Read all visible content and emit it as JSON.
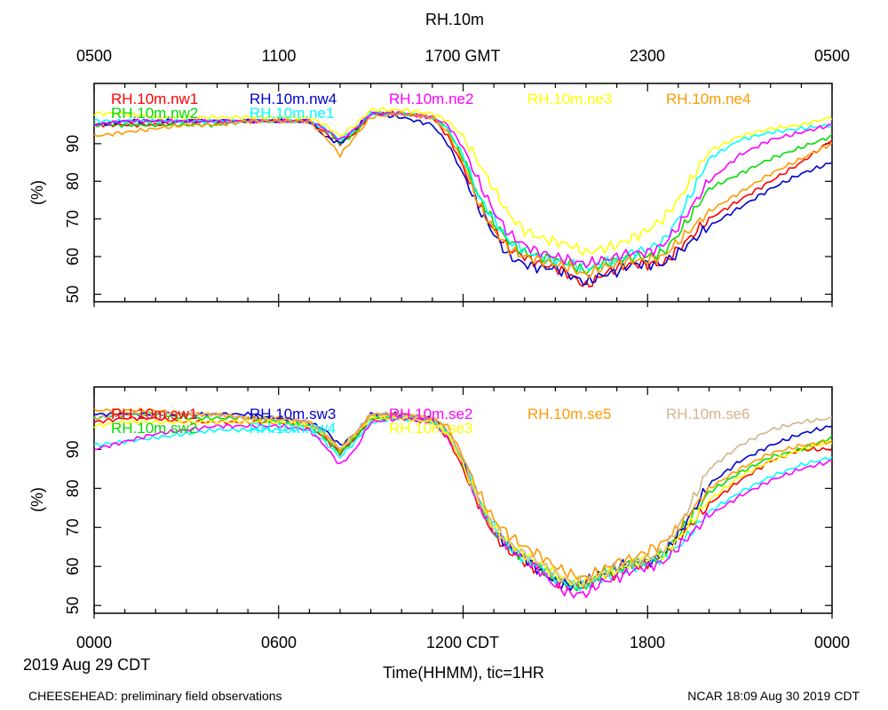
{
  "page_title": "RH.10m",
  "footer_left": "CHEESEHEAD: preliminary field observations",
  "footer_right": "NCAR 18:09 Aug 30 2019 CDT",
  "date_label": "2019 Aug 29 CDT",
  "xlabel": "Time(HHMM), tic=1HR",
  "top_axis_ticks": [
    "0500",
    "1100",
    "1700 GMT",
    "2300",
    "0500"
  ],
  "bottom_axis_ticks": [
    "0000",
    "0600",
    "1200 CDT",
    "1800",
    "0000"
  ],
  "chart_data": [
    {
      "type": "line",
      "title": "RH.10m",
      "ylabel": "(%)",
      "x_unit": "hours CDT",
      "xlim": [
        0,
        24
      ],
      "ylim": [
        48,
        106
      ],
      "yticks": [
        50,
        60,
        70,
        80,
        90
      ],
      "ytick_labels": [
        "50",
        "60",
        "70",
        "80",
        "90"
      ],
      "x": [
        0,
        1,
        2,
        3,
        4,
        5,
        6,
        7,
        7.5,
        8,
        8.5,
        9,
        10,
        11,
        11.5,
        12,
        12.5,
        13,
        13.5,
        14,
        14.5,
        15,
        15.5,
        16,
        16.5,
        17,
        17.5,
        18,
        18.5,
        19,
        20,
        21,
        22,
        23,
        24
      ],
      "series": [
        {
          "name": "RH.10m.nw1",
          "color": "#ff0000",
          "values": [
            95,
            95,
            95,
            96,
            96,
            96,
            96,
            96,
            93,
            90,
            93,
            98,
            98,
            97,
            92,
            84,
            74,
            67,
            62,
            60,
            58,
            57,
            55,
            52,
            55,
            57,
            58,
            58,
            58,
            62,
            70,
            75,
            80,
            85,
            91
          ]
        },
        {
          "name": "RH.10m.nw2",
          "color": "#00dd00",
          "values": [
            95,
            95,
            95,
            95,
            95,
            96,
            96,
            96,
            94,
            90,
            93,
            98,
            98,
            97,
            94,
            86,
            76,
            69,
            64,
            61,
            60,
            59,
            58,
            56,
            58,
            59,
            60,
            60,
            61,
            66,
            78,
            82,
            86,
            89,
            92
          ]
        },
        {
          "name": "RH.10m.nw4",
          "color": "#0000cc",
          "values": [
            95,
            96,
            96,
            96,
            96,
            96,
            96,
            96,
            92,
            90,
            94,
            98,
            97,
            95,
            90,
            82,
            73,
            66,
            60,
            58,
            57,
            57,
            55,
            53,
            55,
            56,
            58,
            58,
            58,
            61,
            68,
            73,
            78,
            82,
            85
          ]
        },
        {
          "name": "RH.10m.ne1",
          "color": "#00ffff",
          "values": [
            96,
            96,
            96,
            96,
            96,
            96,
            96,
            96,
            94,
            91,
            94,
            98,
            98,
            97,
            94,
            87,
            76,
            70,
            64,
            62,
            60,
            59,
            58,
            57,
            58,
            59,
            61,
            62,
            64,
            70,
            86,
            91,
            93,
            94,
            95
          ]
        },
        {
          "name": "RH.10m.ne2",
          "color": "#ff00ff",
          "values": [
            95,
            96,
            96,
            96,
            96,
            96,
            96,
            96,
            94,
            91,
            94,
            98,
            98,
            97,
            95,
            89,
            80,
            72,
            66,
            63,
            61,
            60,
            59,
            58,
            59,
            60,
            61,
            61,
            63,
            68,
            80,
            87,
            91,
            93,
            95
          ]
        },
        {
          "name": "RH.10m.ne3",
          "color": "#ffff00",
          "values": [
            98,
            98,
            97,
            97,
            97,
            97,
            97,
            97,
            95,
            92,
            95,
            99,
            99,
            98,
            96,
            92,
            85,
            78,
            71,
            67,
            65,
            64,
            63,
            61,
            62,
            63,
            65,
            67,
            70,
            75,
            88,
            92,
            94,
            95,
            97
          ]
        },
        {
          "name": "RH.10m.ne4",
          "color": "#ff9900",
          "values": [
            92,
            93,
            94,
            95,
            95,
            96,
            96,
            96,
            92,
            87,
            92,
            97,
            98,
            97,
            93,
            85,
            74,
            67,
            62,
            60,
            59,
            58,
            57,
            55,
            57,
            58,
            59,
            59,
            60,
            64,
            72,
            77,
            82,
            86,
            90
          ]
        }
      ]
    },
    {
      "type": "line",
      "title": "RH.10m",
      "ylabel": "(%)",
      "x_unit": "hours CDT",
      "xlim": [
        0,
        24
      ],
      "ylim": [
        48,
        106
      ],
      "yticks": [
        50,
        60,
        70,
        80,
        90
      ],
      "ytick_labels": [
        "50",
        "60",
        "70",
        "80",
        "90"
      ],
      "x": [
        0,
        1,
        2,
        3,
        4,
        5,
        6,
        7,
        7.5,
        8,
        8.5,
        9,
        10,
        11,
        11.5,
        12,
        12.5,
        13,
        13.5,
        14,
        14.5,
        15,
        15.5,
        16,
        16.5,
        17,
        17.5,
        18,
        18.5,
        19,
        20,
        21,
        22,
        23,
        24
      ],
      "series": [
        {
          "name": "RH.10m.sw1",
          "color": "#ff0000",
          "values": [
            97,
            98,
            98,
            97,
            97,
            97,
            97,
            96,
            93,
            89,
            93,
            98,
            98,
            97,
            93,
            85,
            76,
            68,
            64,
            61,
            59,
            56,
            55,
            55,
            57,
            58,
            60,
            61,
            63,
            67,
            76,
            82,
            87,
            90,
            90
          ]
        },
        {
          "name": "RH.10m.sw2",
          "color": "#00dd00",
          "values": [
            98,
            99,
            99,
            98,
            98,
            98,
            97,
            96,
            93,
            89,
            93,
            98,
            98,
            97,
            94,
            86,
            77,
            69,
            65,
            62,
            60,
            57,
            55,
            55,
            58,
            59,
            61,
            61,
            63,
            68,
            79,
            84,
            88,
            90,
            93
          ]
        },
        {
          "name": "RH.10m.sw3",
          "color": "#0000cc",
          "values": [
            99,
            99,
            99,
            99,
            99,
            99,
            98,
            97,
            95,
            91,
            94,
            99,
            99,
            98,
            95,
            87,
            77,
            69,
            65,
            62,
            59,
            56,
            55,
            56,
            58,
            60,
            61,
            61,
            63,
            68,
            81,
            87,
            91,
            94,
            96
          ]
        },
        {
          "name": "RH.10m.sw4",
          "color": "#00ffff",
          "values": [
            91,
            92,
            93,
            94,
            95,
            95,
            95,
            95,
            92,
            88,
            92,
            97,
            98,
            97,
            94,
            87,
            77,
            70,
            65,
            62,
            60,
            57,
            55,
            55,
            57,
            58,
            60,
            61,
            62,
            65,
            74,
            79,
            83,
            86,
            88
          ]
        },
        {
          "name": "RH.10m.se2",
          "color": "#ff00ff",
          "values": [
            90,
            92,
            94,
            95,
            96,
            96,
            96,
            95,
            91,
            86,
            90,
            97,
            98,
            97,
            93,
            86,
            76,
            69,
            65,
            62,
            59,
            55,
            53,
            53,
            56,
            57,
            59,
            60,
            61,
            65,
            73,
            78,
            82,
            85,
            87
          ]
        },
        {
          "name": "RH.10m.se3",
          "color": "#ffff00",
          "values": [
            96,
            97,
            97,
            97,
            97,
            97,
            97,
            96,
            94,
            90,
            94,
            98,
            98,
            97,
            94,
            86,
            77,
            70,
            66,
            63,
            61,
            58,
            56,
            56,
            58,
            59,
            61,
            62,
            63,
            67,
            77,
            83,
            87,
            90,
            92
          ]
        },
        {
          "name": "RH.10m.se5",
          "color": "#ff9900",
          "values": [
            100,
            100,
            100,
            99,
            99,
            98,
            98,
            97,
            94,
            90,
            94,
            99,
            99,
            98,
            96,
            88,
            79,
            72,
            68,
            65,
            63,
            60,
            58,
            57,
            59,
            61,
            62,
            64,
            66,
            70,
            80,
            85,
            89,
            91,
            92
          ]
        },
        {
          "name": "RH.10m.se6",
          "color": "#d2b48c",
          "values": [
            98,
            99,
            99,
            99,
            99,
            98,
            98,
            97,
            94,
            90,
            94,
            99,
            99,
            98,
            95,
            87,
            77,
            70,
            66,
            63,
            61,
            58,
            56,
            56,
            58,
            60,
            61,
            62,
            64,
            70,
            85,
            91,
            95,
            97,
            98
          ]
        }
      ]
    }
  ]
}
